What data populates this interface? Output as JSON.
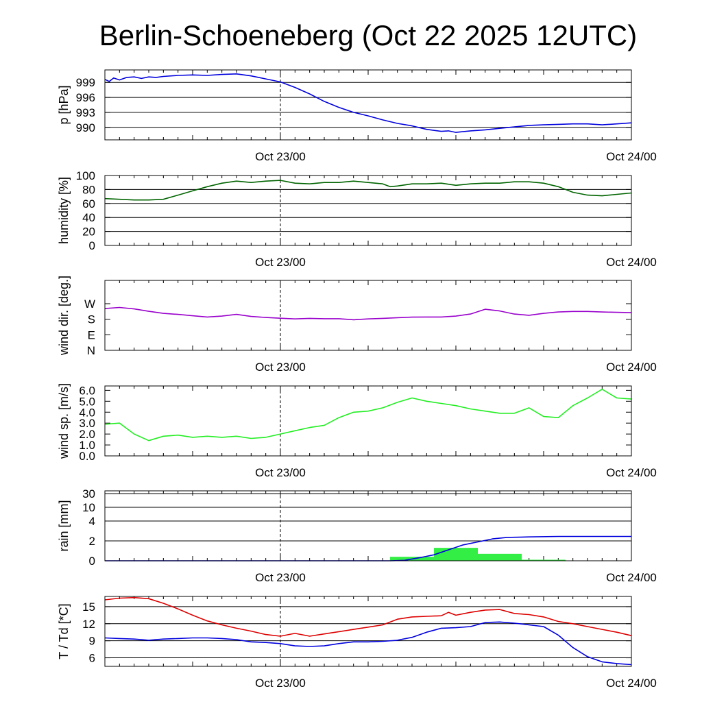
{
  "title": "Berlin-Schoeneberg (Oct 22 2025 12UTC)",
  "colors": {
    "pressure": "#0000dd",
    "humidity": "#006400",
    "wind_dir": "#9900cc",
    "wind_speed": "#22ee22",
    "rain_bar": "#33ee44",
    "rain_line": "#0000dd",
    "temperature": "#dd0000",
    "dewpoint": "#0000dd",
    "grid": "#000000"
  },
  "chart_data": [
    {
      "id": "pressure",
      "type": "line",
      "ylabel": "p [hPa]",
      "x_tick_labels": [
        "Oct 23/00",
        "Oct 24/00"
      ],
      "xlim": [
        0,
        36
      ],
      "ylim": [
        987.5,
        1001.5
      ],
      "y_ticks": [
        990,
        993,
        996,
        999
      ],
      "y_tick_labels": [
        "990",
        "993",
        "996",
        "999"
      ],
      "grid_lines": [
        990,
        993,
        996,
        999
      ],
      "series": [
        {
          "name": "p",
          "color_key": "pressure",
          "x": [
            0,
            0.3,
            0.6,
            1,
            1.5,
            2,
            2.5,
            3,
            3.5,
            4,
            5,
            6,
            7,
            8,
            9,
            10,
            11,
            12,
            13,
            14,
            15,
            16,
            17,
            18,
            19,
            20,
            21,
            22,
            23,
            23.5,
            24,
            25,
            26,
            27,
            28,
            29,
            30,
            31,
            32,
            33,
            34,
            35,
            36
          ],
          "y": [
            999.6,
            999.2,
            999.9,
            999.5,
            1000.0,
            1000.1,
            999.8,
            1000.1,
            1000.0,
            1000.2,
            1000.4,
            1000.5,
            1000.4,
            1000.6,
            1000.7,
            1000.3,
            999.7,
            999.1,
            998.0,
            996.7,
            995.2,
            994.0,
            993.0,
            992.3,
            991.5,
            990.8,
            990.3,
            989.6,
            989.2,
            989.3,
            989.0,
            989.3,
            989.5,
            989.8,
            990.1,
            990.4,
            990.5,
            990.6,
            990.7,
            990.7,
            990.5,
            990.7,
            990.9
          ]
        }
      ]
    },
    {
      "id": "humidity",
      "type": "line",
      "ylabel": "humidity [%]",
      "x_tick_labels": [
        "Oct 23/00",
        "Oct 24/00"
      ],
      "xlim": [
        0,
        36
      ],
      "ylim": [
        0,
        100
      ],
      "y_ticks": [
        0,
        20,
        40,
        60,
        80,
        100
      ],
      "y_tick_labels": [
        "0",
        "20",
        "40",
        "60",
        "80",
        "100"
      ],
      "grid_lines": [
        20,
        40,
        60,
        80
      ],
      "series": [
        {
          "name": "humidity",
          "color_key": "humidity",
          "x": [
            0,
            1,
            2,
            3,
            4,
            5,
            6,
            7,
            8,
            9,
            10,
            11,
            12,
            13,
            14,
            15,
            16,
            17,
            18,
            19,
            19.5,
            20,
            21,
            22,
            23,
            24,
            25,
            26,
            27,
            28,
            29,
            30,
            31,
            32,
            33,
            34,
            35,
            36
          ],
          "y": [
            67,
            66,
            65,
            65,
            66,
            72,
            78,
            84,
            89,
            92,
            90,
            92,
            93,
            89,
            88,
            90,
            90,
            92,
            90,
            88,
            84,
            85,
            88,
            88,
            89,
            86,
            88,
            89,
            89,
            91,
            91,
            89,
            84,
            76,
            72,
            71,
            73,
            75
          ]
        }
      ]
    },
    {
      "id": "wind_dir",
      "type": "line",
      "ylabel": "wind dir. [deg.]",
      "x_tick_labels": [
        "Oct 23/00",
        "Oct 24/00"
      ],
      "xlim": [
        0,
        36
      ],
      "ylim": [
        0,
        405
      ],
      "y_ticks": [
        0,
        90,
        180,
        270
      ],
      "y_tick_labels": [
        "N",
        "E",
        "S",
        "W"
      ],
      "grid_lines": [],
      "series": [
        {
          "name": "wind dir",
          "color_key": "wind_dir",
          "x": [
            0,
            1,
            2,
            3,
            4,
            5,
            6,
            7,
            8,
            9,
            10,
            11,
            12,
            13,
            14,
            15,
            16,
            17,
            18,
            19,
            20,
            21,
            22,
            23,
            24,
            25,
            26,
            27,
            28,
            29,
            30,
            31,
            32,
            33,
            34,
            35,
            36
          ],
          "y": [
            242,
            248,
            240,
            226,
            214,
            208,
            200,
            193,
            198,
            208,
            196,
            190,
            186,
            182,
            185,
            183,
            183,
            177,
            182,
            185,
            189,
            192,
            193,
            193,
            198,
            210,
            238,
            228,
            210,
            203,
            214,
            222,
            225,
            225,
            222,
            220,
            218
          ]
        }
      ]
    },
    {
      "id": "wind_speed",
      "type": "line",
      "ylabel": "wind sp. [m/s]",
      "x_tick_labels": [
        "Oct 23/00",
        "Oct 24/00"
      ],
      "xlim": [
        0,
        36
      ],
      "ylim": [
        0,
        6.4
      ],
      "y_ticks": [
        0,
        1,
        2,
        3,
        4,
        5,
        6
      ],
      "y_tick_labels": [
        "0.0",
        "1.0",
        "2.0",
        "3.0",
        "4.0",
        "5.0",
        "6.0"
      ],
      "grid_lines": [],
      "series": [
        {
          "name": "wind speed",
          "color_key": "wind_speed",
          "x": [
            0,
            1,
            2,
            3,
            4,
            5,
            6,
            7,
            8,
            9,
            10,
            11,
            12,
            13,
            14,
            15,
            16,
            17,
            18,
            19,
            20,
            21,
            22,
            23,
            24,
            25,
            26,
            27,
            28,
            29,
            30,
            31,
            32,
            33,
            34,
            35,
            36
          ],
          "y": [
            2.9,
            3.0,
            2.0,
            1.4,
            1.8,
            1.9,
            1.7,
            1.8,
            1.7,
            1.8,
            1.6,
            1.7,
            2.0,
            2.3,
            2.6,
            2.8,
            3.5,
            4.0,
            4.1,
            4.4,
            4.9,
            5.3,
            5.0,
            4.8,
            4.6,
            4.3,
            4.1,
            3.9,
            3.9,
            4.4,
            3.6,
            3.5,
            4.6,
            5.3,
            6.1,
            5.3,
            5.2
          ]
        }
      ]
    },
    {
      "id": "rain",
      "type": "bar+line",
      "ylabel": "rain [mm]",
      "x_tick_labels": [
        "Oct 23/00",
        "Oct 24/00"
      ],
      "xlim": [
        0,
        36
      ],
      "y_ticks": [
        0,
        2,
        4,
        10,
        30
      ],
      "y_tick_labels": [
        "0",
        "2",
        "4",
        "10",
        "30"
      ],
      "grid_lines": [
        2,
        4,
        10,
        30
      ],
      "bars": {
        "name": "hourly rain",
        "color_key": "rain_bar",
        "x_start": [
          19.5,
          22.5,
          25.5,
          28.5
        ],
        "x_end": [
          22.5,
          25.5,
          28.5,
          31.5
        ],
        "values": [
          0.4,
          1.3,
          0.7,
          0.0
        ]
      },
      "series": [
        {
          "name": "accumulated rain",
          "color_key": "rain_line",
          "x": [
            0,
            19.5,
            20.5,
            21.5,
            22.5,
            23.5,
            24.5,
            25.5,
            26.5,
            27.5,
            29,
            31,
            36
          ],
          "y": [
            0,
            0,
            0.05,
            0.3,
            0.6,
            1.1,
            1.6,
            1.9,
            2.2,
            2.35,
            2.4,
            2.45,
            2.45
          ]
        }
      ]
    },
    {
      "id": "temperature",
      "type": "line",
      "ylabel": "T / Td [*C]",
      "x_tick_labels": [
        "Oct 23/00",
        "Oct 24/00"
      ],
      "xlim": [
        0,
        36
      ],
      "ylim": [
        4.5,
        16.8
      ],
      "y_ticks": [
        6,
        9,
        12,
        15
      ],
      "y_tick_labels": [
        "6",
        "9",
        "12",
        "15"
      ],
      "grid_lines": [
        6,
        9,
        12,
        15
      ],
      "series": [
        {
          "name": "T",
          "color_key": "temperature",
          "x": [
            0,
            1,
            2,
            3,
            4,
            5,
            6,
            7,
            8,
            9,
            10,
            11,
            12,
            13,
            14,
            15,
            16,
            17,
            18,
            19,
            20,
            21,
            22,
            23,
            23.5,
            24,
            25,
            26,
            27,
            28,
            29,
            30,
            31,
            32,
            33,
            34,
            35,
            36
          ],
          "y": [
            16.2,
            16.5,
            16.6,
            16.4,
            15.6,
            14.6,
            13.5,
            12.5,
            11.8,
            11.2,
            10.7,
            10.1,
            9.8,
            10.3,
            9.8,
            10.2,
            10.6,
            11.0,
            11.4,
            11.8,
            12.8,
            13.2,
            13.3,
            13.4,
            14.0,
            13.5,
            14.0,
            14.4,
            14.5,
            13.8,
            13.6,
            13.2,
            12.4,
            12.0,
            11.5,
            11.0,
            10.5,
            9.9
          ]
        },
        {
          "name": "Td",
          "color_key": "dewpoint",
          "x": [
            0,
            1,
            2,
            3,
            4,
            5,
            6,
            7,
            8,
            9,
            10,
            11,
            12,
            13,
            14,
            15,
            16,
            17,
            18,
            19,
            20,
            21,
            22,
            23,
            24,
            25,
            26,
            27,
            28,
            29,
            30,
            31,
            32,
            33,
            34,
            35,
            36
          ],
          "y": [
            9.5,
            9.4,
            9.3,
            9.1,
            9.3,
            9.4,
            9.5,
            9.5,
            9.4,
            9.2,
            8.8,
            8.7,
            8.5,
            8.1,
            8.0,
            8.1,
            8.5,
            8.8,
            8.8,
            8.9,
            9.1,
            9.6,
            10.5,
            11.2,
            11.3,
            11.5,
            12.2,
            12.3,
            12.1,
            11.8,
            11.5,
            10.0,
            7.8,
            6.2,
            5.3,
            5.0,
            4.8
          ]
        }
      ]
    }
  ]
}
